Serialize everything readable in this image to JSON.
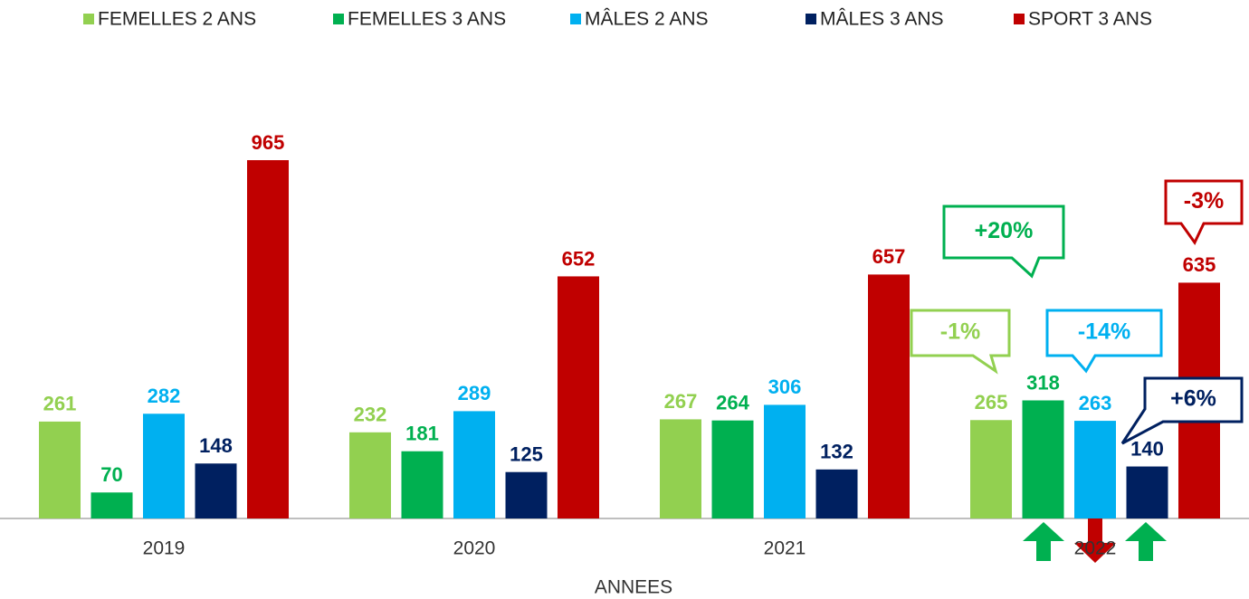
{
  "chart_data": {
    "type": "bar",
    "x_label": "ANNEES",
    "categories": [
      "2019",
      "2020",
      "2021",
      "2022"
    ],
    "series": [
      {
        "name": "FEMELLES 2 ANS",
        "color": "#92d050",
        "values": [
          261,
          232,
          267,
          265
        ]
      },
      {
        "name": "FEMELLES 3 ANS",
        "color": "#00b050",
        "values": [
          70,
          181,
          264,
          318
        ]
      },
      {
        "name": "MÂLES 2 ANS",
        "color": "#00b0f0",
        "values": [
          282,
          289,
          306,
          263
        ]
      },
      {
        "name": "MÂLES 3 ANS",
        "color": "#002060",
        "values": [
          148,
          125,
          132,
          140
        ]
      },
      {
        "name": "SPORT 3 ANS",
        "color": "#c00000",
        "values": [
          965,
          652,
          657,
          635
        ]
      }
    ],
    "legend": "top",
    "annotations": [
      {
        "text": "-1%",
        "color": "#92d050"
      },
      {
        "text": "+20%",
        "color": "#00b050"
      },
      {
        "text": "-14%",
        "color": "#00b0f0"
      },
      {
        "text": "+6%",
        "color": "#002060"
      },
      {
        "text": "-3%",
        "color": "#c00000"
      }
    ]
  }
}
